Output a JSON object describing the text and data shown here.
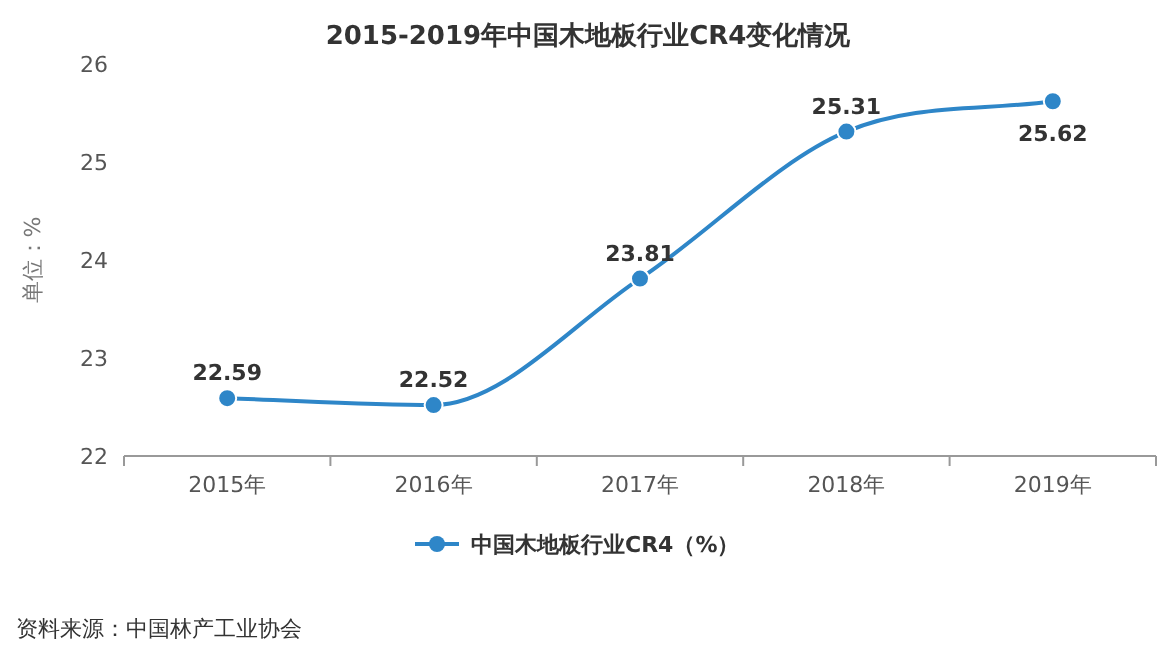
{
  "chart_data": {
    "type": "line",
    "title": "2015-2019年中国木地板行业CR4变化情况",
    "ylabel": "单位：%",
    "categories": [
      "2015年",
      "2016年",
      "2017年",
      "2018年",
      "2019年"
    ],
    "series": [
      {
        "name": "中国木地板行业CR4（%）",
        "color": "#2e86c8",
        "values": [
          22.59,
          22.52,
          23.81,
          25.31,
          25.62
        ]
      }
    ],
    "ylim": [
      22,
      26
    ],
    "yticks": [
      22,
      23,
      24,
      25,
      26
    ],
    "data_labels": true,
    "marker": "circle",
    "legend": "bottom",
    "grid": false,
    "annotations": [
      "资料来源：中国林产工业协会"
    ]
  }
}
